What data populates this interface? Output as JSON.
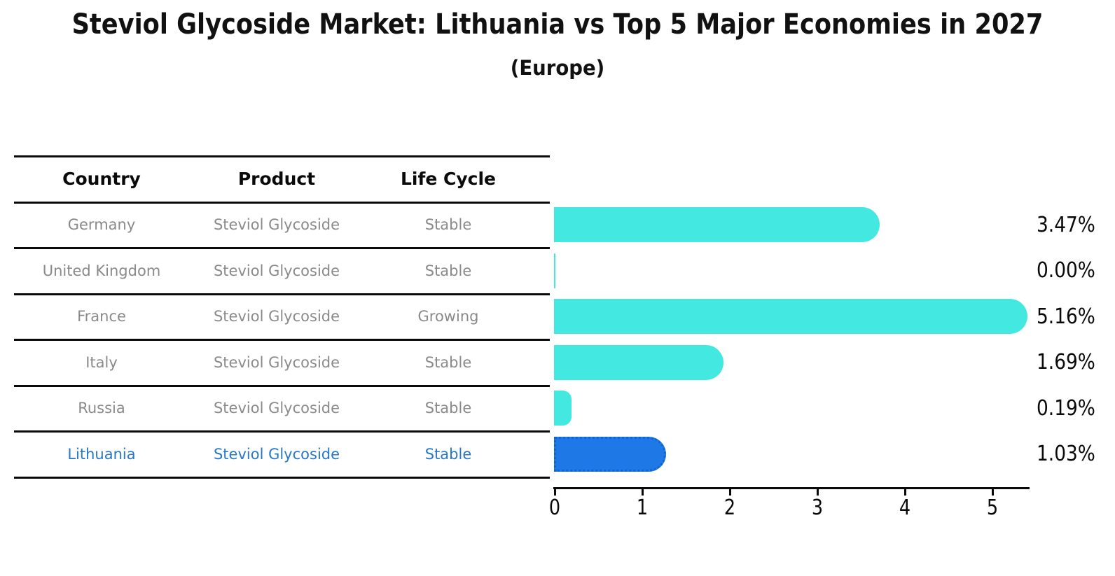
{
  "title": "Steviol Glycoside Market: Lithuania vs Top 5 Major Economies in 2027",
  "subtitle": "(Europe)",
  "table": {
    "headers": [
      "Country",
      "Product",
      "Life Cycle"
    ],
    "rows": [
      {
        "country": "Germany",
        "product": "Steviol Glycoside",
        "life_cycle": "Stable",
        "highlight": false
      },
      {
        "country": "United Kingdom",
        "product": "Steviol Glycoside",
        "life_cycle": "Stable",
        "highlight": false
      },
      {
        "country": "France",
        "product": "Steviol Glycoside",
        "life_cycle": "Growing",
        "highlight": false
      },
      {
        "country": "Italy",
        "product": "Steviol Glycoside",
        "life_cycle": "Stable",
        "highlight": false
      },
      {
        "country": "Russia",
        "product": "Steviol Glycoside",
        "life_cycle": "Stable",
        "highlight": false
      },
      {
        "country": "Lithuania",
        "product": "Steviol Glycoside",
        "life_cycle": "Stable",
        "highlight": true
      }
    ]
  },
  "chart_data": {
    "type": "bar",
    "orientation": "horizontal",
    "categories": [
      "Germany",
      "United Kingdom",
      "France",
      "Italy",
      "Russia",
      "Lithuania"
    ],
    "values": [
      3.47,
      0.0,
      5.16,
      1.69,
      0.19,
      1.03
    ],
    "value_labels": [
      "3.47%",
      "0.00%",
      "5.16%",
      "1.69%",
      "0.19%",
      "1.03%"
    ],
    "title": "Steviol Glycoside Market: Lithuania vs Top 5 Major Economies in 2027 (Europe)",
    "xlabel": "",
    "ylabel": "",
    "xlim": [
      0,
      5.45
    ],
    "xticks": [
      0,
      1,
      2,
      3,
      4,
      5
    ],
    "grid": false,
    "legend_position": "none",
    "bar_color": "#43e8e0",
    "highlight_color": "#1e78e6",
    "highlight_border_color": "#0e63d6",
    "highlight_index": 5
  },
  "colors": {
    "background": "#ffffff",
    "table_line": "#0a0a0a",
    "muted_text": "#8a8a8a",
    "highlight_text": "#2878c8",
    "axis": "#0a0a0a"
  }
}
